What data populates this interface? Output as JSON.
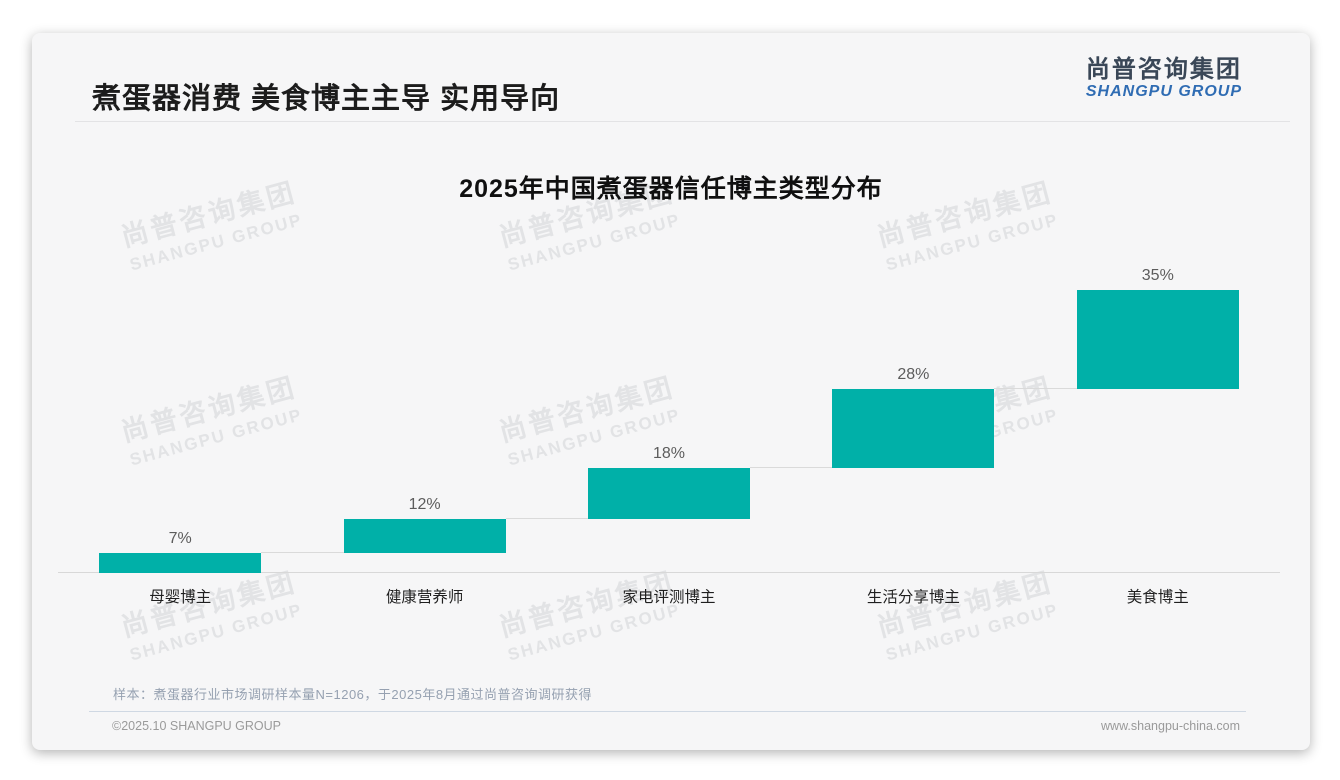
{
  "header": {
    "title": "煮蛋器消费 美食博主主导 实用导向",
    "logo_cn": "尚普咨询集团",
    "logo_en": "SHANGPU GROUP"
  },
  "watermark": {
    "line1": "尚普咨询集团",
    "line2": "SHANGPU GROUP"
  },
  "chart_data": {
    "type": "bar",
    "variant": "waterfall-steps",
    "title": "2025年中国煮蛋器信任博主类型分布",
    "categories": [
      "母婴博主",
      "健康营养师",
      "家电评测博主",
      "生活分享博主",
      "美食博主"
    ],
    "values": [
      7,
      12,
      18,
      28,
      35
    ],
    "value_labels": [
      "7%",
      "12%",
      "18%",
      "28%",
      "35%"
    ],
    "cumulative_baselines": [
      0,
      7,
      19,
      37,
      65
    ],
    "unit": "%",
    "ylim": [
      0,
      100
    ],
    "bar_color": "#00b0a8",
    "connector_color": "#dadada",
    "axis_color": "#d8d8d8",
    "grid": false,
    "legend": false
  },
  "footnote": {
    "sample_note": "样本：煮蛋器行业市场调研样本量N=1206，于2025年8月通过尚普咨询调研获得"
  },
  "footer": {
    "copyright": "©2025.10 SHANGPU GROUP",
    "website": "www.shangpu-china.com"
  }
}
